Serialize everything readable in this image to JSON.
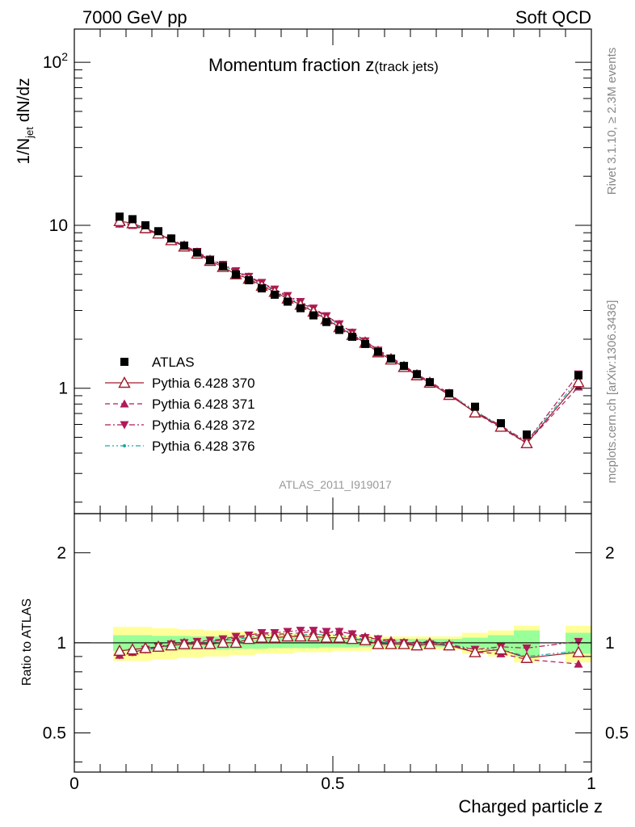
{
  "header": {
    "left": "7000 GeV pp",
    "right": "Soft QCD"
  },
  "side_labels": {
    "rivet": "Rivet 3.1.10, ≥ 2.3M events",
    "mcplots": "mcplots.cern.ch [arXiv:1306.3436]"
  },
  "chart_data": [
    {
      "type": "scatter",
      "title": "Momentum fraction z",
      "title_sub": "(track jets)",
      "ylabel": "1/N",
      "ylabel_sub": "jet",
      "ylabel_tail": " dN/dz",
      "yscale": "log",
      "ylim": [
        0.17,
        160
      ],
      "xlim": [
        0,
        1
      ],
      "yticks": [
        {
          "v": 100,
          "label": "10",
          "sup": "2"
        },
        {
          "v": 10,
          "label": "10",
          "sup": ""
        },
        {
          "v": 1,
          "label": "1",
          "sup": ""
        }
      ],
      "watermark": "ATLAS_2011_I919017",
      "legend_position": "bottom-left",
      "x": [
        0.0875,
        0.1125,
        0.1375,
        0.1625,
        0.1875,
        0.2125,
        0.2375,
        0.2625,
        0.2875,
        0.3125,
        0.3375,
        0.3625,
        0.3875,
        0.4125,
        0.4375,
        0.4625,
        0.4875,
        0.5125,
        0.5375,
        0.5625,
        0.5875,
        0.6125,
        0.6375,
        0.6625,
        0.6875,
        0.725,
        0.775,
        0.825,
        0.875,
        0.975
      ],
      "series": [
        {
          "name": "ATLAS",
          "marker": "square",
          "color": "#000000",
          "line": "none",
          "values": [
            11.3,
            10.9,
            10.0,
            9.2,
            8.3,
            7.5,
            6.8,
            6.1,
            5.6,
            5.0,
            4.6,
            4.1,
            3.75,
            3.4,
            3.1,
            2.8,
            2.55,
            2.28,
            2.07,
            1.87,
            1.67,
            1.52,
            1.37,
            1.22,
            1.09,
            0.93,
            0.77,
            0.61,
            0.52,
            1.2
          ]
        },
        {
          "name": "Pythia 6.428 370",
          "marker": "triangle-open",
          "color": "#a01c2c",
          "line": "solid",
          "values": [
            10.6,
            10.3,
            9.6,
            8.9,
            8.1,
            7.4,
            6.7,
            6.05,
            5.55,
            5.0,
            4.7,
            4.25,
            3.9,
            3.55,
            3.25,
            2.95,
            2.65,
            2.37,
            2.12,
            1.9,
            1.66,
            1.5,
            1.35,
            1.2,
            1.08,
            0.91,
            0.71,
            0.58,
            0.46,
            1.09
          ]
        },
        {
          "name": "Pythia 6.428 371",
          "marker": "triangle-up",
          "color": "#b01a5a",
          "line": "dashed",
          "values": [
            10.2,
            10.0,
            9.4,
            8.8,
            8.1,
            7.4,
            6.8,
            6.15,
            5.7,
            5.2,
            4.8,
            4.4,
            4.0,
            3.65,
            3.35,
            3.05,
            2.75,
            2.48,
            2.2,
            1.96,
            1.72,
            1.55,
            1.38,
            1.22,
            1.1,
            0.93,
            0.71,
            0.57,
            0.46,
            1.02
          ]
        },
        {
          "name": "Pythia 6.428 372",
          "marker": "triangle-down",
          "color": "#b01a5a",
          "line": "dashdot",
          "values": [
            10.2,
            10.1,
            9.5,
            8.9,
            8.2,
            7.5,
            6.9,
            6.2,
            5.75,
            5.25,
            4.85,
            4.45,
            4.05,
            3.7,
            3.4,
            3.1,
            2.78,
            2.48,
            2.2,
            1.95,
            1.71,
            1.53,
            1.37,
            1.2,
            1.08,
            0.91,
            0.72,
            0.59,
            0.47,
            1.22
          ]
        },
        {
          "name": "Pythia 6.428 376",
          "marker": "dot",
          "color": "#1aa6a6",
          "line": "dashdotdot",
          "values": [
            10.4,
            10.1,
            9.5,
            8.9,
            8.1,
            7.4,
            6.8,
            6.15,
            5.7,
            5.15,
            4.75,
            4.35,
            3.95,
            3.6,
            3.3,
            3.0,
            2.7,
            2.42,
            2.15,
            1.92,
            1.69,
            1.53,
            1.37,
            1.21,
            1.08,
            0.92,
            0.73,
            0.58,
            0.47,
            1.13
          ]
        }
      ]
    },
    {
      "type": "scatter",
      "ylabel": "Ratio to ATLAS",
      "xlabel": "Charged particle z",
      "ylim": [
        0.37,
        2.7
      ],
      "xlim": [
        0,
        1
      ],
      "yticks": [
        {
          "v": 0.5,
          "label": "0.5"
        },
        {
          "v": 1,
          "label": "1"
        },
        {
          "v": 2,
          "label": "2"
        }
      ],
      "xticks": [
        {
          "v": 0,
          "label": "0"
        },
        {
          "v": 0.5,
          "label": "0.5"
        },
        {
          "v": 1,
          "label": "1"
        }
      ],
      "band_colors": {
        "inner": "#99ff99",
        "outer": "#ffff99"
      },
      "bins": [
        {
          "lo": 0.075,
          "hi": 0.1,
          "inner": 0.06,
          "outer": 0.13
        },
        {
          "lo": 0.1,
          "hi": 0.125,
          "inner": 0.06,
          "outer": 0.13
        },
        {
          "lo": 0.125,
          "hi": 0.15,
          "inner": 0.06,
          "outer": 0.13
        },
        {
          "lo": 0.15,
          "hi": 0.175,
          "inner": 0.055,
          "outer": 0.12
        },
        {
          "lo": 0.175,
          "hi": 0.2,
          "inner": 0.055,
          "outer": 0.12
        },
        {
          "lo": 0.2,
          "hi": 0.225,
          "inner": 0.055,
          "outer": 0.11
        },
        {
          "lo": 0.225,
          "hi": 0.25,
          "inner": 0.05,
          "outer": 0.11
        },
        {
          "lo": 0.25,
          "hi": 0.275,
          "inner": 0.05,
          "outer": 0.1
        },
        {
          "lo": 0.275,
          "hi": 0.3,
          "inner": 0.05,
          "outer": 0.1
        },
        {
          "lo": 0.3,
          "hi": 0.325,
          "inner": 0.045,
          "outer": 0.09
        },
        {
          "lo": 0.325,
          "hi": 0.35,
          "inner": 0.045,
          "outer": 0.09
        },
        {
          "lo": 0.35,
          "hi": 0.375,
          "inner": 0.045,
          "outer": 0.08
        },
        {
          "lo": 0.375,
          "hi": 0.4,
          "inner": 0.04,
          "outer": 0.08
        },
        {
          "lo": 0.4,
          "hi": 0.425,
          "inner": 0.04,
          "outer": 0.08
        },
        {
          "lo": 0.425,
          "hi": 0.45,
          "inner": 0.04,
          "outer": 0.07
        },
        {
          "lo": 0.45,
          "hi": 0.475,
          "inner": 0.04,
          "outer": 0.07
        },
        {
          "lo": 0.475,
          "hi": 0.5,
          "inner": 0.035,
          "outer": 0.07
        },
        {
          "lo": 0.5,
          "hi": 0.525,
          "inner": 0.035,
          "outer": 0.06
        },
        {
          "lo": 0.525,
          "hi": 0.55,
          "inner": 0.035,
          "outer": 0.06
        },
        {
          "lo": 0.55,
          "hi": 0.575,
          "inner": 0.03,
          "outer": 0.06
        },
        {
          "lo": 0.575,
          "hi": 0.6,
          "inner": 0.03,
          "outer": 0.05
        },
        {
          "lo": 0.6,
          "hi": 0.625,
          "inner": 0.03,
          "outer": 0.05
        },
        {
          "lo": 0.625,
          "hi": 0.65,
          "inner": 0.03,
          "outer": 0.05
        },
        {
          "lo": 0.65,
          "hi": 0.675,
          "inner": 0.03,
          "outer": 0.05
        },
        {
          "lo": 0.675,
          "hi": 0.7,
          "inner": 0.03,
          "outer": 0.05
        },
        {
          "lo": 0.7,
          "hi": 0.75,
          "inner": 0.03,
          "outer": 0.05
        },
        {
          "lo": 0.75,
          "hi": 0.8,
          "inner": 0.04,
          "outer": 0.08
        },
        {
          "lo": 0.8,
          "hi": 0.85,
          "inner": 0.06,
          "outer": 0.1
        },
        {
          "lo": 0.85,
          "hi": 0.9,
          "inner": 0.1,
          "outer": 0.14
        },
        {
          "lo": 0.95,
          "hi": 1.0,
          "inner": 0.08,
          "outer": 0.14
        }
      ],
      "x": [
        0.0875,
        0.1125,
        0.1375,
        0.1625,
        0.1875,
        0.2125,
        0.2375,
        0.2625,
        0.2875,
        0.3125,
        0.3375,
        0.3625,
        0.3875,
        0.4125,
        0.4375,
        0.4625,
        0.4875,
        0.5125,
        0.5375,
        0.5625,
        0.5875,
        0.6125,
        0.6375,
        0.6625,
        0.6875,
        0.725,
        0.775,
        0.825,
        0.875,
        0.975
      ],
      "series": [
        {
          "name": "Pythia 6.428 370",
          "marker": "triangle-open",
          "color": "#a01c2c",
          "line": "solid",
          "values": [
            0.94,
            0.95,
            0.96,
            0.97,
            0.98,
            0.99,
            0.99,
            0.99,
            1.0,
            1.0,
            1.03,
            1.04,
            1.04,
            1.05,
            1.05,
            1.05,
            1.04,
            1.04,
            1.03,
            1.02,
            0.99,
            0.99,
            0.99,
            0.98,
            0.99,
            0.98,
            0.93,
            0.95,
            0.89,
            0.93
          ]
        },
        {
          "name": "Pythia 6.428 371",
          "marker": "triangle-up",
          "color": "#b01a5a",
          "line": "dashed",
          "values": [
            0.91,
            0.93,
            0.95,
            0.97,
            0.98,
            0.99,
            1.0,
            1.01,
            1.02,
            1.04,
            1.05,
            1.07,
            1.07,
            1.07,
            1.08,
            1.09,
            1.08,
            1.09,
            1.07,
            1.05,
            1.03,
            1.02,
            1.0,
            1.0,
            1.01,
            0.99,
            0.93,
            0.92,
            0.88,
            0.85
          ]
        },
        {
          "name": "Pythia 6.428 372",
          "marker": "triangle-down",
          "color": "#b01a5a",
          "line": "dashdot",
          "values": [
            0.91,
            0.93,
            0.95,
            0.97,
            0.99,
            1.0,
            1.01,
            1.02,
            1.03,
            1.05,
            1.06,
            1.08,
            1.08,
            1.09,
            1.1,
            1.1,
            1.09,
            1.09,
            1.07,
            1.04,
            1.03,
            1.0,
            1.0,
            0.98,
            0.99,
            0.98,
            0.95,
            0.97,
            0.96,
            1.01
          ]
        },
        {
          "name": "Pythia 6.428 376",
          "marker": "dot",
          "color": "#1aa6a6",
          "line": "dashdotdot",
          "values": [
            0.92,
            0.93,
            0.95,
            0.96,
            0.98,
            0.99,
            1.0,
            1.01,
            1.02,
            1.03,
            1.04,
            1.06,
            1.06,
            1.06,
            1.06,
            1.07,
            1.06,
            1.06,
            1.04,
            1.03,
            1.01,
            1.0,
            1.0,
            0.99,
            0.99,
            0.99,
            0.95,
            0.95,
            0.9,
            0.94
          ]
        }
      ]
    }
  ]
}
